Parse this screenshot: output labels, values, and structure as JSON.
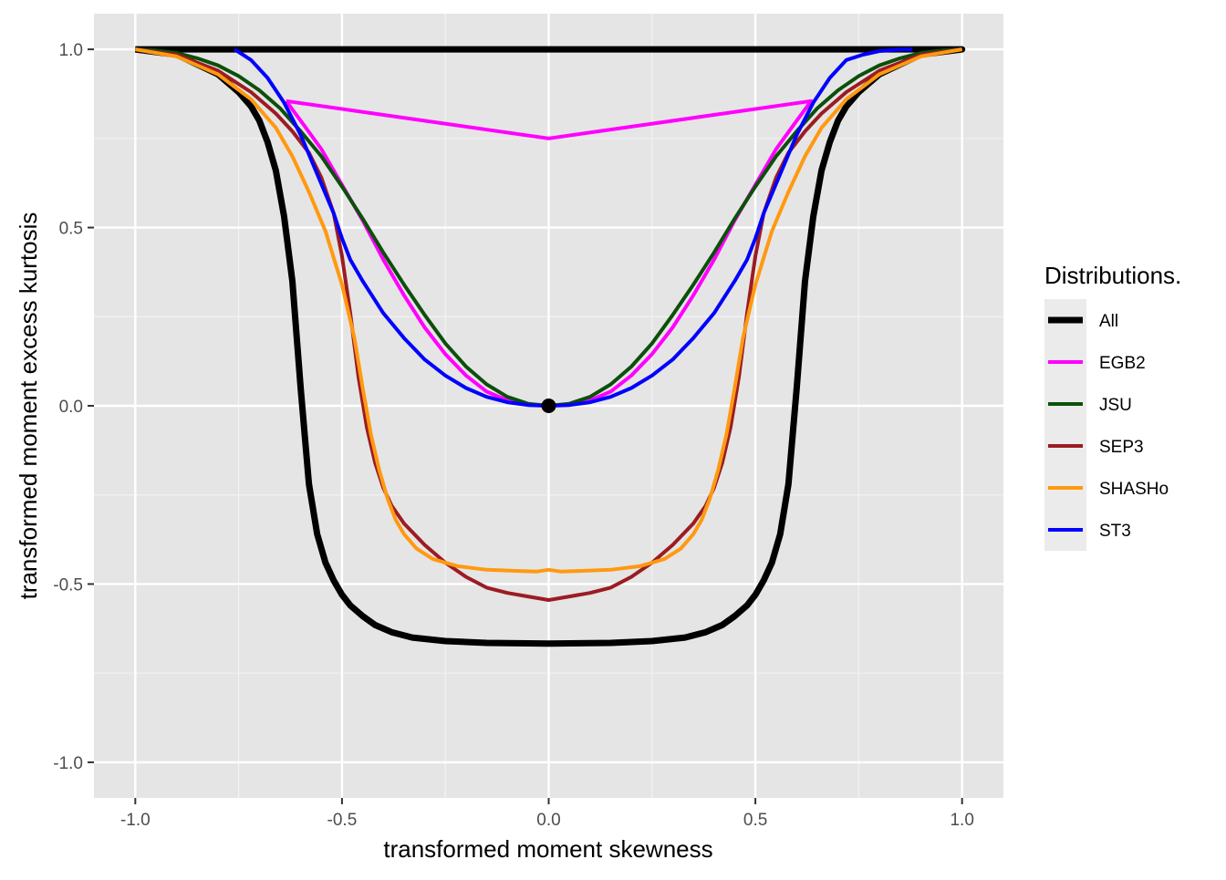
{
  "chart_data": {
    "type": "line",
    "title": "",
    "xlabel": "transformed moment skewness",
    "ylabel": "transformed moment excess kurtosis",
    "xlim": [
      -1.1,
      1.1
    ],
    "ylim": [
      -1.1,
      1.1
    ],
    "x_ticks": [
      -1.0,
      -0.5,
      0.0,
      0.5,
      1.0
    ],
    "x_tick_labels": [
      "-1.0",
      "-0.5",
      "0.0",
      "0.5",
      "1.0"
    ],
    "y_ticks": [
      -1.0,
      -0.5,
      0.0,
      0.5,
      1.0
    ],
    "y_tick_labels": [
      "-1.0",
      "-0.5",
      "0.0",
      "0.5",
      "1.0"
    ],
    "grid": true,
    "background": "#e5e5e5",
    "legend": {
      "title": "Distributions.",
      "position": "right",
      "entries": [
        {
          "label": "All",
          "color": "#000000"
        },
        {
          "label": "EGB2",
          "color": "#ff00ff"
        },
        {
          "label": "JSU",
          "color": "#0b4f0b"
        },
        {
          "label": "SEP3",
          "color": "#9b1c22"
        },
        {
          "label": "SHASHo",
          "color": "#ff9910"
        },
        {
          "label": "ST3",
          "color": "#0000ff"
        }
      ]
    },
    "series": [
      {
        "name": "All",
        "color": "#000000",
        "width": 7,
        "x": [
          -1.0,
          -0.9,
          -0.8,
          -0.75,
          -0.72,
          -0.7,
          -0.68,
          -0.66,
          -0.64,
          -0.62,
          -0.6,
          -0.58,
          -0.56,
          -0.54,
          -0.52,
          -0.5,
          -0.48,
          -0.45,
          -0.42,
          -0.38,
          -0.33,
          -0.25,
          -0.15,
          0.0,
          0.15,
          0.25,
          0.33,
          0.38,
          0.42,
          0.45,
          0.48,
          0.5,
          0.52,
          0.54,
          0.56,
          0.58,
          0.6,
          0.62,
          0.64,
          0.66,
          0.68,
          0.7,
          0.72,
          0.75,
          0.8,
          0.9,
          1.0,
          1.0,
          -1.0
        ],
        "y": [
          1.0,
          0.985,
          0.93,
          0.88,
          0.84,
          0.8,
          0.74,
          0.66,
          0.53,
          0.35,
          0.05,
          -0.22,
          -0.36,
          -0.44,
          -0.49,
          -0.53,
          -0.56,
          -0.59,
          -0.615,
          -0.635,
          -0.65,
          -0.66,
          -0.665,
          -0.667,
          -0.665,
          -0.66,
          -0.65,
          -0.635,
          -0.615,
          -0.59,
          -0.56,
          -0.53,
          -0.49,
          -0.44,
          -0.36,
          -0.22,
          0.05,
          0.35,
          0.53,
          0.66,
          0.74,
          0.8,
          0.84,
          0.88,
          0.93,
          0.985,
          1.0,
          1.0,
          1.0
        ]
      },
      {
        "name": "EGB2",
        "color": "#ff00ff",
        "width": 4,
        "x": [
          -0.635,
          -0.6,
          -0.55,
          -0.5,
          -0.45,
          -0.4,
          -0.35,
          -0.3,
          -0.25,
          -0.2,
          -0.15,
          -0.1,
          -0.05,
          0.0,
          0.05,
          0.1,
          0.15,
          0.2,
          0.25,
          0.3,
          0.35,
          0.4,
          0.45,
          0.5,
          0.55,
          0.6,
          0.635,
          0.0,
          -0.635
        ],
        "y": [
          0.855,
          0.8,
          0.72,
          0.62,
          0.52,
          0.41,
          0.31,
          0.22,
          0.145,
          0.085,
          0.04,
          0.015,
          0.003,
          0.0,
          0.003,
          0.015,
          0.04,
          0.085,
          0.145,
          0.22,
          0.31,
          0.41,
          0.52,
          0.62,
          0.72,
          0.8,
          0.855,
          0.75,
          0.855
        ]
      },
      {
        "name": "JSU",
        "color": "#0b4f0b",
        "width": 4,
        "x": [
          -1.0,
          -0.95,
          -0.9,
          -0.85,
          -0.8,
          -0.75,
          -0.7,
          -0.65,
          -0.6,
          -0.55,
          -0.5,
          -0.45,
          -0.4,
          -0.35,
          -0.3,
          -0.25,
          -0.2,
          -0.15,
          -0.1,
          -0.05,
          0.0,
          0.05,
          0.1,
          0.15,
          0.2,
          0.25,
          0.3,
          0.35,
          0.4,
          0.45,
          0.5,
          0.55,
          0.6,
          0.65,
          0.7,
          0.75,
          0.8,
          0.85,
          0.9,
          0.95,
          1.0
        ],
        "y": [
          1.0,
          0.997,
          0.99,
          0.975,
          0.955,
          0.925,
          0.885,
          0.835,
          0.77,
          0.7,
          0.615,
          0.525,
          0.43,
          0.34,
          0.255,
          0.175,
          0.11,
          0.06,
          0.025,
          0.006,
          0.0,
          0.006,
          0.025,
          0.06,
          0.11,
          0.175,
          0.255,
          0.34,
          0.43,
          0.525,
          0.615,
          0.7,
          0.77,
          0.835,
          0.885,
          0.925,
          0.955,
          0.975,
          0.99,
          0.997,
          1.0
        ]
      },
      {
        "name": "SEP3",
        "color": "#9b1c22",
        "width": 4,
        "x": [
          -1.0,
          -0.9,
          -0.8,
          -0.72,
          -0.66,
          -0.62,
          -0.58,
          -0.55,
          -0.52,
          -0.5,
          -0.48,
          -0.46,
          -0.44,
          -0.42,
          -0.4,
          -0.38,
          -0.35,
          -0.3,
          -0.25,
          -0.2,
          -0.15,
          -0.1,
          -0.05,
          0.0,
          0.05,
          0.1,
          0.15,
          0.2,
          0.25,
          0.3,
          0.35,
          0.38,
          0.4,
          0.42,
          0.44,
          0.46,
          0.48,
          0.5,
          0.52,
          0.55,
          0.58,
          0.62,
          0.66,
          0.72,
          0.8,
          0.9,
          1.0
        ],
        "y": [
          1.0,
          0.985,
          0.94,
          0.88,
          0.82,
          0.77,
          0.71,
          0.64,
          0.54,
          0.42,
          0.26,
          0.08,
          -0.06,
          -0.16,
          -0.23,
          -0.28,
          -0.33,
          -0.39,
          -0.44,
          -0.48,
          -0.51,
          -0.525,
          -0.535,
          -0.545,
          -0.535,
          -0.525,
          -0.51,
          -0.48,
          -0.44,
          -0.39,
          -0.33,
          -0.28,
          -0.23,
          -0.16,
          -0.06,
          0.08,
          0.26,
          0.42,
          0.54,
          0.64,
          0.71,
          0.77,
          0.82,
          0.88,
          0.94,
          0.985,
          1.0
        ]
      },
      {
        "name": "SHASHo",
        "color": "#ff9910",
        "width": 4,
        "x": [
          -1.0,
          -0.9,
          -0.8,
          -0.72,
          -0.66,
          -0.62,
          -0.58,
          -0.54,
          -0.5,
          -0.47,
          -0.45,
          -0.43,
          -0.41,
          -0.39,
          -0.37,
          -0.35,
          -0.32,
          -0.28,
          -0.22,
          -0.15,
          -0.08,
          -0.03,
          0.0,
          0.03,
          0.08,
          0.15,
          0.22,
          0.28,
          0.32,
          0.35,
          0.37,
          0.39,
          0.41,
          0.43,
          0.45,
          0.47,
          0.5,
          0.54,
          0.58,
          0.62,
          0.66,
          0.72,
          0.8,
          0.9,
          1.0
        ],
        "y": [
          1.0,
          0.98,
          0.93,
          0.86,
          0.78,
          0.7,
          0.6,
          0.49,
          0.34,
          0.19,
          0.05,
          -0.08,
          -0.18,
          -0.26,
          -0.32,
          -0.36,
          -0.4,
          -0.43,
          -0.45,
          -0.46,
          -0.463,
          -0.465,
          -0.46,
          -0.465,
          -0.463,
          -0.46,
          -0.45,
          -0.43,
          -0.4,
          -0.36,
          -0.32,
          -0.26,
          -0.18,
          -0.08,
          0.05,
          0.19,
          0.34,
          0.49,
          0.6,
          0.7,
          0.78,
          0.86,
          0.93,
          0.98,
          1.0
        ]
      },
      {
        "name": "ST3",
        "color": "#0000ff",
        "width": 4,
        "x": [
          -0.76,
          -0.72,
          -0.68,
          -0.64,
          -0.6,
          -0.56,
          -0.52,
          -0.5,
          -0.48,
          -0.45,
          -0.4,
          -0.35,
          -0.3,
          -0.25,
          -0.2,
          -0.15,
          -0.1,
          -0.05,
          0.0,
          0.05,
          0.1,
          0.15,
          0.2,
          0.25,
          0.3,
          0.35,
          0.4,
          0.45,
          0.48,
          0.5,
          0.52,
          0.56,
          0.6,
          0.64,
          0.68,
          0.72,
          0.76,
          0.8,
          0.84,
          0.88
        ],
        "y": [
          1.0,
          0.97,
          0.92,
          0.85,
          0.76,
          0.65,
          0.54,
          0.47,
          0.41,
          0.35,
          0.26,
          0.19,
          0.13,
          0.085,
          0.05,
          0.025,
          0.01,
          0.002,
          0.0,
          0.002,
          0.01,
          0.025,
          0.05,
          0.085,
          0.13,
          0.19,
          0.26,
          0.35,
          0.41,
          0.47,
          0.54,
          0.65,
          0.76,
          0.85,
          0.92,
          0.97,
          0.985,
          0.995,
          0.999,
          1.0
        ]
      }
    ],
    "points": [
      {
        "x": 0.0,
        "y": 0.0,
        "color": "#000000"
      }
    ]
  }
}
